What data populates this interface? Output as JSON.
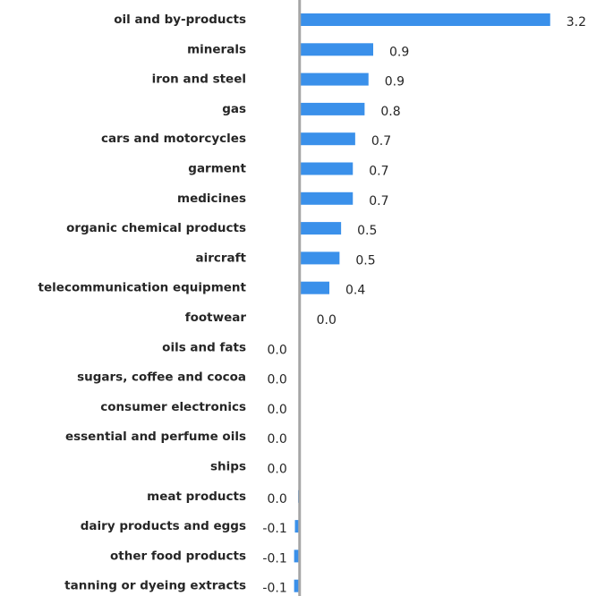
{
  "chart_data": {
    "type": "bar",
    "orientation": "horizontal",
    "categories": [
      "oil and by-products",
      "minerals",
      "iron and steel",
      "gas",
      "cars and motorcycles",
      "garment",
      "medicines",
      "organic chemical products",
      "aircraft",
      "telecommunication equipment",
      "footwear",
      "oils and fats",
      "sugars, coffee and cocoa",
      "consumer electronics",
      "essential and perfume oils",
      "ships",
      "meat products",
      "dairy products and eggs",
      "other food products",
      "tanning or dyeing extracts"
    ],
    "values": [
      3.2,
      0.94,
      0.88,
      0.83,
      0.71,
      0.68,
      0.68,
      0.53,
      0.51,
      0.38,
      0.01,
      -0.01,
      -0.01,
      -0.01,
      -0.01,
      -0.01,
      -0.02,
      -0.06,
      -0.07,
      -0.07
    ],
    "value_labels": [
      "3.2",
      "0.9",
      "0.9",
      "0.8",
      "0.7",
      "0.7",
      "0.7",
      "0.5",
      "0.5",
      "0.4",
      "0.0",
      "0.0",
      "0.0",
      "0.0",
      "0.0",
      "0.0",
      "0.0",
      "-0.1",
      "-0.1",
      "-0.1"
    ],
    "color": "#3a90ea",
    "xlim": [
      -0.5,
      3.5
    ]
  }
}
